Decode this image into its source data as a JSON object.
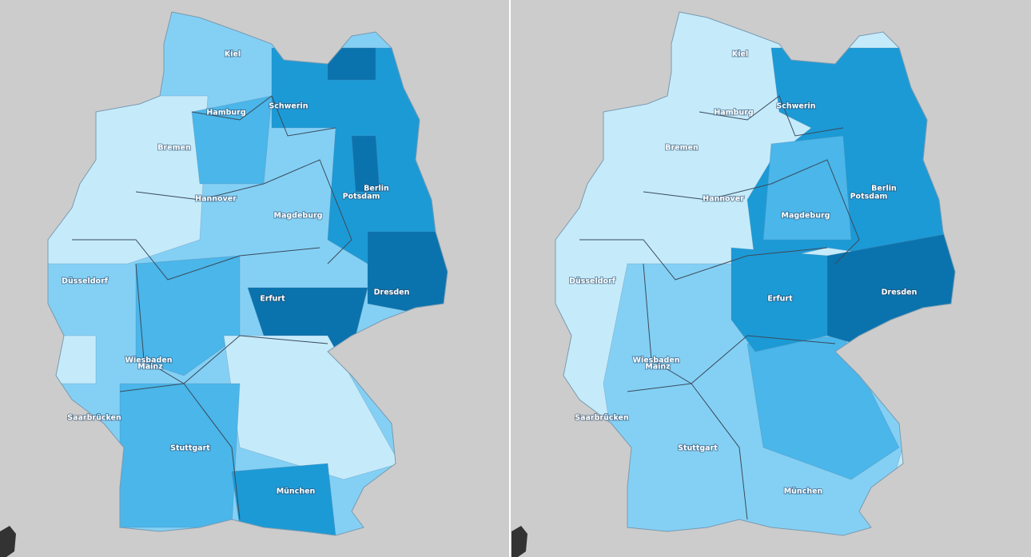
{
  "maps": [
    {
      "labels": [
        "Kiel",
        "Hamburg",
        "Schwerin",
        "Bremen",
        "Hannover",
        "Berlin",
        "Potsdam",
        "Magdeburg",
        "Düsseldorf",
        "Erfurt",
        "Dresden",
        "Wiesbaden",
        "Mainz",
        "Saarbrücken",
        "Stuttgart",
        "München"
      ]
    },
    {
      "labels": [
        "Kiel",
        "Hamburg",
        "Schwerin",
        "Bremen",
        "Hannover",
        "Berlin",
        "Potsdam",
        "Magdeburg",
        "Düsseldorf",
        "Erfurt",
        "Dresden",
        "Wiesbaden",
        "Mainz",
        "Saarbrücken",
        "Stuttgart",
        "München"
      ]
    }
  ]
}
